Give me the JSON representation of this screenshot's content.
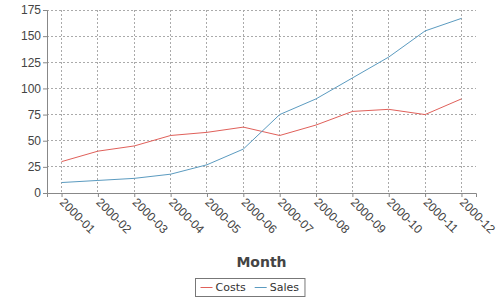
{
  "chart_data": {
    "type": "line",
    "x_label": "Month",
    "categories": [
      "2000-01",
      "2000-02",
      "2000-03",
      "2000-04",
      "2000-05",
      "2000-06",
      "2000-07",
      "2000-08",
      "2000-09",
      "2000-10",
      "2000-11",
      "2000-12"
    ],
    "series": [
      {
        "name": "Costs",
        "color": "#e0605a",
        "values": [
          30,
          40,
          45,
          55,
          58,
          63,
          55,
          65,
          78,
          80,
          75,
          90
        ]
      },
      {
        "name": "Sales",
        "color": "#5b9bc0",
        "values": [
          10,
          12,
          14,
          18,
          27,
          42,
          75,
          90,
          110,
          130,
          155,
          167
        ]
      }
    ],
    "ylim": [
      0,
      175
    ],
    "yticks": [
      0,
      25,
      50,
      75,
      100,
      125,
      150,
      175
    ],
    "grid": true,
    "legend": "bottom"
  }
}
